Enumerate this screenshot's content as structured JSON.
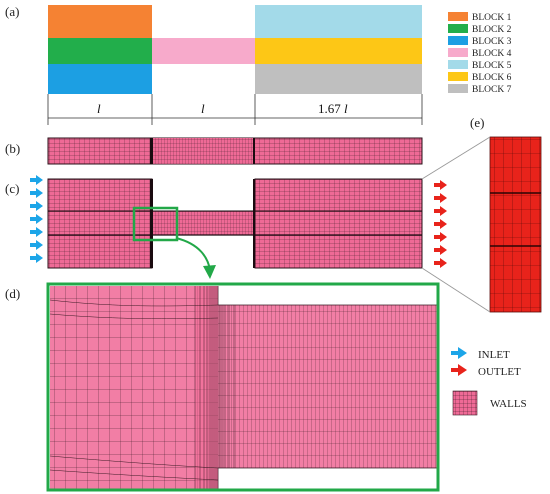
{
  "panels": {
    "a": "(a)",
    "b": "(b)",
    "c": "(c)",
    "d": "(d)",
    "e": "(e)"
  },
  "blocks": [
    {
      "label": "BLOCK 1",
      "color": "#F58233"
    },
    {
      "label": "BLOCK 2",
      "color": "#22AE4B"
    },
    {
      "label": "BLOCK 3",
      "color": "#1C9FE3"
    },
    {
      "label": "BLOCK 4",
      "color": "#F7AACB"
    },
    {
      "label": "BLOCK 5",
      "color": "#A3DAE9"
    },
    {
      "label": "BLOCK 6",
      "color": "#FDC716"
    },
    {
      "label": "BLOCK 7",
      "color": "#BFBFBF"
    }
  ],
  "dimensions": {
    "d1": "l",
    "d2": "l",
    "d3_num": "1.67 ",
    "d3_var": "l"
  },
  "colors": {
    "mesh_fill": "#EF6A96",
    "mesh_line": "#3a1a24",
    "highlight": "#22A848",
    "inlet": "#1CA5E8",
    "outlet": "#E8231B",
    "detail_mesh": "#E8231B"
  },
  "key": {
    "inlet": "INLET",
    "outlet": "OUTLET",
    "walls": "WALLS"
  }
}
